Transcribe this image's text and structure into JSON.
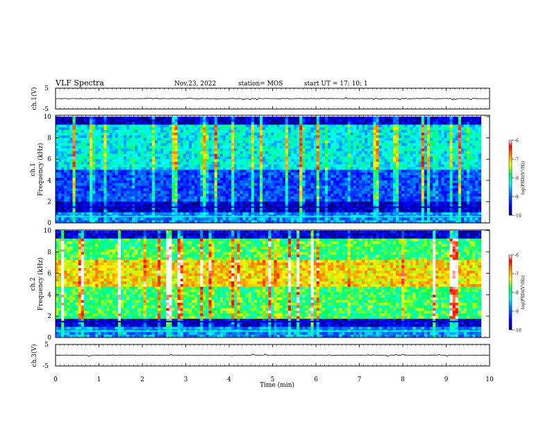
{
  "header": {
    "title": "VLF Spectra",
    "date": "Nov.23, 2022",
    "station": "station= MOS",
    "start": "start  UT =   17: 10: 1"
  },
  "colors": {
    "spectrogram_low": "#000080",
    "spectrogram_mid": "#00ff80",
    "spectrogram_high": "#ff0000",
    "axis": "#000000",
    "waveform": "#000000"
  },
  "chart_data": [
    {
      "type": "line",
      "name": "ch1-waveform",
      "ylabel": "ch.1(V)",
      "yticks": [
        "5",
        "-5"
      ],
      "ylim": [
        -5,
        5
      ],
      "xlim": [
        0,
        10
      ],
      "values_description_level": 0
    },
    {
      "type": "heatmap",
      "name": "ch1-spectrogram",
      "ylabel_1": "ch.1",
      "ylabel_2": "Frequency (kHz)",
      "yticks": [
        "0",
        "2",
        "4",
        "6",
        "8",
        "10"
      ],
      "ylim": [
        0,
        10
      ],
      "xlim": [
        0,
        9.8
      ],
      "colorbar": {
        "label": "log(PSD)(V²/Hz)",
        "ticks": [
          "-6",
          "-7",
          "-8",
          "-9",
          "-10"
        ],
        "range": [
          -10,
          -6
        ]
      }
    },
    {
      "type": "heatmap",
      "name": "ch2-spectrogram",
      "ylabel_1": "ch.2",
      "ylabel_2": "Frequency (kHz)",
      "yticks": [
        "0",
        "2",
        "4",
        "6",
        "8",
        "10"
      ],
      "ylim": [
        0,
        10
      ],
      "xlim": [
        0,
        9.8
      ],
      "colorbar": {
        "label": "log(PSD)(V²/Hz)",
        "ticks": [
          "-6",
          "-7",
          "-8",
          "-9",
          "-10"
        ],
        "range": [
          -10,
          -6
        ]
      }
    },
    {
      "type": "line",
      "name": "ch3-waveform",
      "ylabel": "ch.3(V)",
      "yticks": [
        "5",
        "-5"
      ],
      "ylim": [
        -5,
        5
      ],
      "xlim": [
        0,
        10
      ]
    }
  ],
  "xaxis": {
    "label": "Time  (min)",
    "ticks": [
      "0",
      "1",
      "2",
      "3",
      "4",
      "5",
      "6",
      "7",
      "8",
      "9",
      "10"
    ],
    "range": [
      0,
      10
    ]
  }
}
